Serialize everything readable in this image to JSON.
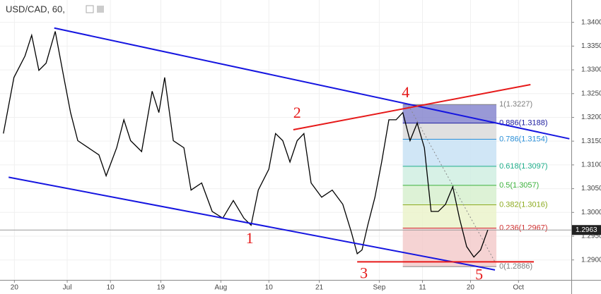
{
  "chart_data": {
    "type": "line",
    "title": "USD/CAD, 60,",
    "color": "#000000",
    "xlim": [
      -3,
      116
    ],
    "ylim": [
      1.2858,
      1.3447
    ],
    "xticks": [
      {
        "value": 0,
        "label": "20"
      },
      {
        "value": 11,
        "label": "Jul"
      },
      {
        "value": 20,
        "label": "10"
      },
      {
        "value": 30.5,
        "label": "19"
      },
      {
        "value": 43,
        "label": "Aug"
      },
      {
        "value": 53,
        "label": "10"
      },
      {
        "value": 63.5,
        "label": "21"
      },
      {
        "value": 76,
        "label": "Sep"
      },
      {
        "value": 85,
        "label": "11"
      },
      {
        "value": 95,
        "label": "20"
      },
      {
        "value": 105,
        "label": "Oct"
      }
    ],
    "yticks": [
      {
        "value": 1.29,
        "label": "1.2900"
      },
      {
        "value": 1.295,
        "label": "1.2950"
      },
      {
        "value": 1.3,
        "label": "1.3000"
      },
      {
        "value": 1.305,
        "label": "1.3050"
      },
      {
        "value": 1.31,
        "label": "1.3100"
      },
      {
        "value": 1.315,
        "label": "1.3150"
      },
      {
        "value": 1.32,
        "label": "1.3200"
      },
      {
        "value": 1.325,
        "label": "1.3250"
      },
      {
        "value": 1.33,
        "label": "1.3300"
      },
      {
        "value": 1.335,
        "label": "1.3350"
      },
      {
        "value": 1.34,
        "label": "1.3400"
      }
    ],
    "x": [
      -2.3,
      -0.1,
      2.2,
      3.6,
      5.1,
      6.6,
      8.5,
      10.3,
      11.7,
      13.2,
      15.4,
      17.6,
      19.1,
      21.3,
      22.8,
      24.2,
      26.5,
      28.7,
      30.1,
      31.3,
      33.1,
      35.3,
      36.8,
      39.0,
      41.2,
      43.4,
      45.6,
      47.8,
      49.3,
      50.8,
      53.0,
      54.4,
      55.9,
      57.4,
      58.9,
      60.3,
      61.8,
      64.0,
      66.2,
      68.4,
      70.2,
      71.4,
      72.4,
      73.6,
      75.1,
      76.5,
      78.0,
      79.5,
      80.9,
      82.4,
      83.9,
      85.4,
      86.8,
      88.3,
      89.8,
      91.3,
      92.7,
      94.2,
      95.7,
      97.1,
      98.6
    ],
    "values": [
      1.3166,
      1.3284,
      1.3329,
      1.3373,
      1.3299,
      1.3314,
      1.3381,
      1.3284,
      1.321,
      1.3151,
      1.3136,
      1.3121,
      1.3077,
      1.3136,
      1.3195,
      1.3151,
      1.3128,
      1.3255,
      1.321,
      1.3284,
      1.3151,
      1.3136,
      1.3047,
      1.3062,
      1.3002,
      1.2988,
      1.3025,
      1.2988,
      1.2973,
      1.3047,
      1.3091,
      1.3166,
      1.3151,
      1.3106,
      1.3151,
      1.3166,
      1.3062,
      1.3032,
      1.3047,
      1.3017,
      1.2958,
      1.2913,
      1.2921,
      1.2973,
      1.3032,
      1.3106,
      1.3195,
      1.3195,
      1.321,
      1.3151,
      1.3188,
      1.3136,
      1.3002,
      1.3002,
      1.3017,
      1.3054,
      1.2988,
      1.2928,
      1.2906,
      1.2921,
      1.2963
    ],
    "last_price": 1.2963,
    "trendlines": [
      {
        "color": "#1515e0",
        "x": [
          8.3,
          115.6
        ],
        "y": [
          1.3388,
          1.3155
        ]
      },
      {
        "color": "#1515e0",
        "x": [
          -1.2,
          100.1
        ],
        "y": [
          1.3074,
          1.2879
        ]
      },
      {
        "color": "#e61919",
        "x": [
          58.1,
          107.5
        ],
        "y": [
          1.3174,
          1.3269
        ]
      },
      {
        "color": "#e61919",
        "x": [
          71.4,
          108.2
        ],
        "y": [
          1.2896,
          1.2896
        ]
      }
    ],
    "fib": {
      "x": [
        80.9,
        100.4
      ],
      "levels": [
        {
          "value": 1.3227,
          "label": "1(1.3227)",
          "color": "#808080",
          "fill": "#7f7fcc"
        },
        {
          "value": 1.3188,
          "label": "0.886(1.3188)",
          "color": "#2020a0",
          "fill": "#d8d8d8"
        },
        {
          "value": 1.3154,
          "label": "0.786(1.3154)",
          "color": "#2a8fd8",
          "fill": "#c4e0f4"
        },
        {
          "value": 1.3097,
          "label": "0.618(1.3097)",
          "color": "#1fae8a",
          "fill": "#cdeee0"
        },
        {
          "value": 1.3057,
          "label": "0.5(1.3057)",
          "color": "#3bb03b",
          "fill": "#d4efcc"
        },
        {
          "value": 1.3016,
          "label": "0.382(1.3016)",
          "color": "#8caa1e",
          "fill": "#eaf2c8"
        },
        {
          "value": 1.2967,
          "label": "0.236(1.2967)",
          "color": "#d03030",
          "fill": "#f2c8c8"
        },
        {
          "value": 1.2886,
          "label": "0(1.2886)",
          "color": "#808080"
        }
      ],
      "trend": {
        "x": [
          82.1,
          100.1
        ],
        "y": [
          1.3225,
          1.2896
        ]
      }
    },
    "annotations": [
      {
        "text": "1",
        "x": 49.0,
        "y": 1.2943
      },
      {
        "text": "2",
        "x": 58.9,
        "y": 1.3207
      },
      {
        "text": "3",
        "x": 72.8,
        "y": 1.2869
      },
      {
        "text": "4",
        "x": 81.5,
        "y": 1.325
      },
      {
        "text": "5",
        "x": 96.8,
        "y": 1.2866
      }
    ]
  }
}
